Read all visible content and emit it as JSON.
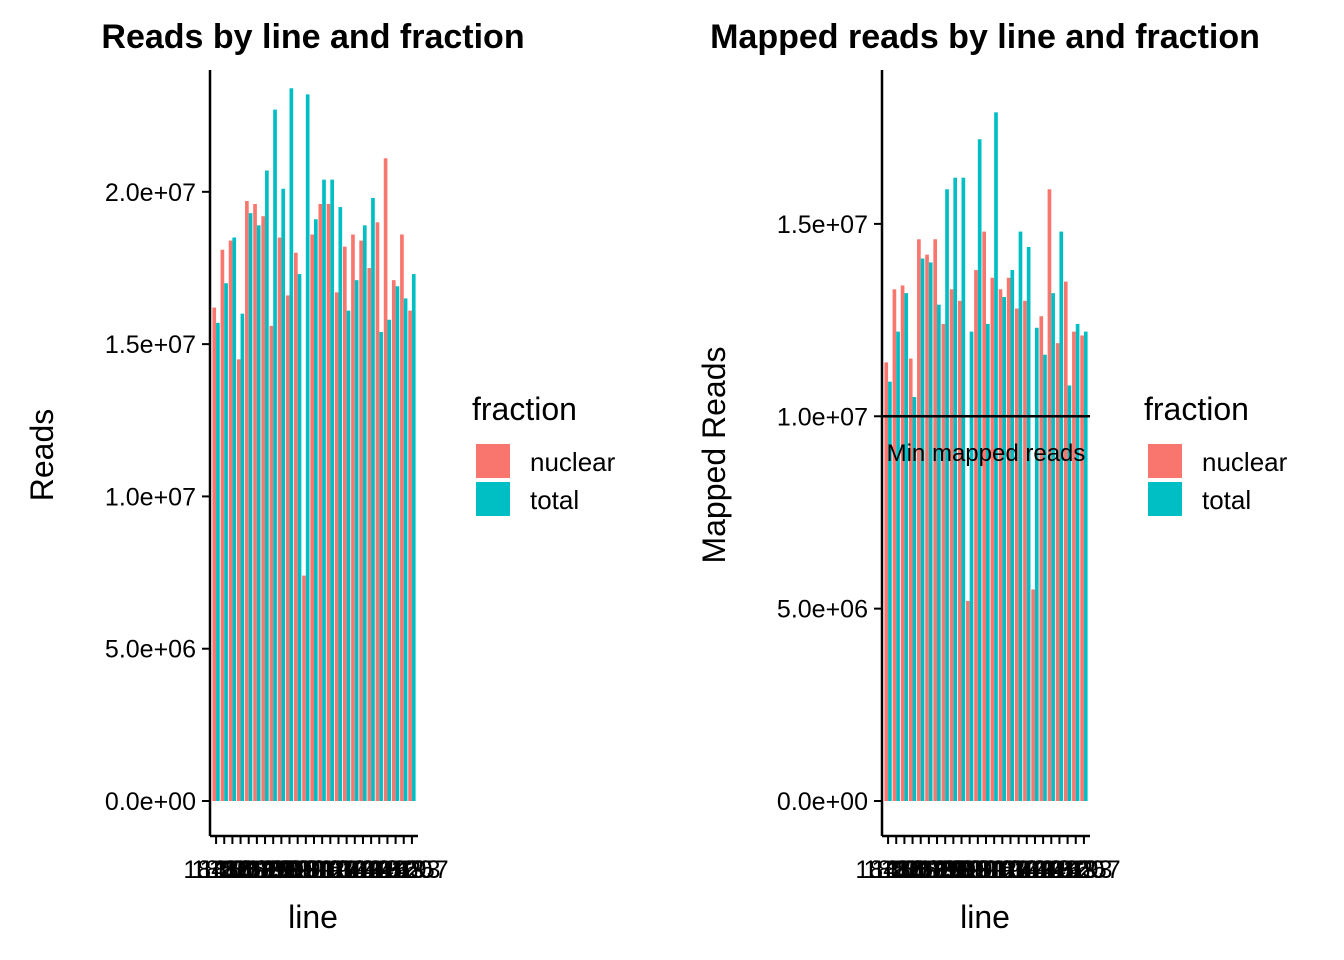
{
  "colors": {
    "nuclear": "#F8766D",
    "total": "#00BFC4"
  },
  "chart_data": [
    {
      "type": "bar",
      "title": "Reads by line and fraction",
      "xlabel": "line",
      "ylabel": "Reads",
      "ylim": [
        0,
        24000000
      ],
      "yticks": [
        0,
        5000000,
        10000000,
        15000000,
        20000000
      ],
      "ytick_labels": [
        "0.0e+00",
        "5.0e+06",
        "1.0e+07",
        "1.5e+07",
        "2.0e+07"
      ],
      "legend": {
        "title": "fraction",
        "items": [
          "nuclear",
          "total"
        ],
        "position": "right"
      },
      "grid": false,
      "series": [
        {
          "name": "nuclear",
          "values": [
            16200000,
            18100000,
            18400000,
            14500000,
            19700000,
            19600000,
            19200000,
            15600000,
            18500000,
            16600000,
            18000000,
            7400000,
            18600000,
            19600000,
            19600000,
            16700000,
            18200000,
            18600000,
            18400000,
            17500000,
            19000000,
            21100000,
            17100000,
            18600000,
            16100000
          ]
        },
        {
          "name": "total",
          "values": [
            15700000,
            17000000,
            18500000,
            16000000,
            19300000,
            18900000,
            20700000,
            22700000,
            20100000,
            23400000,
            17300000,
            23200000,
            19100000,
            20400000,
            20400000,
            19500000,
            16100000,
            17100000,
            18900000,
            19800000,
            15400000,
            15800000,
            16900000,
            16500000,
            17300000
          ]
        }
      ]
    },
    {
      "type": "bar",
      "title": "Mapped reads by line and fraction",
      "xlabel": "line",
      "ylabel": "Mapped Reads",
      "ylim": [
        0,
        19000000
      ],
      "yticks": [
        0,
        5000000,
        10000000,
        15000000
      ],
      "ytick_labels": [
        "0.0e+00",
        "5.0e+06",
        "1.0e+07",
        "1.5e+07"
      ],
      "legend": {
        "title": "fraction",
        "items": [
          "nuclear",
          "total"
        ],
        "position": "right"
      },
      "grid": false,
      "hline": {
        "y": 10000000,
        "label": "Min mapped reads"
      },
      "series": [
        {
          "name": "nuclear",
          "values": [
            11400000,
            13300000,
            13400000,
            11500000,
            14600000,
            14200000,
            14600000,
            12400000,
            13300000,
            13000000,
            5200000,
            13800000,
            14800000,
            13600000,
            13300000,
            13600000,
            12800000,
            13000000,
            5500000,
            12600000,
            15900000,
            11900000,
            13500000,
            12200000,
            12100000
          ]
        },
        {
          "name": "total",
          "values": [
            10900000,
            12200000,
            13200000,
            10500000,
            14100000,
            14000000,
            12900000,
            15900000,
            16200000,
            16200000,
            12200000,
            17200000,
            12400000,
            17900000,
            13100000,
            13800000,
            14800000,
            14400000,
            12300000,
            11600000,
            13200000,
            14800000,
            10800000,
            12400000,
            12200000
          ]
        }
      ],
      "categories_shown": [
        "18486",
        "18505",
        "18508",
        "18511",
        "18519",
        "18520",
        "18853",
        "19092",
        "19093",
        "19099",
        "19101",
        "19116",
        "19119",
        "19127",
        "19130",
        "19140",
        "19141",
        "19142",
        "19143",
        "19144",
        "19152",
        "19153",
        "19160",
        "19193",
        "19257"
      ]
    }
  ],
  "categories": [
    "18486",
    "18505",
    "18508",
    "18511",
    "18519",
    "18520",
    "18853",
    "19092",
    "19093",
    "19099",
    "19101",
    "19116",
    "19119",
    "19127",
    "19130",
    "19140",
    "19141",
    "19142",
    "19143",
    "19144",
    "19152",
    "19153",
    "19160",
    "19193",
    "19257"
  ]
}
